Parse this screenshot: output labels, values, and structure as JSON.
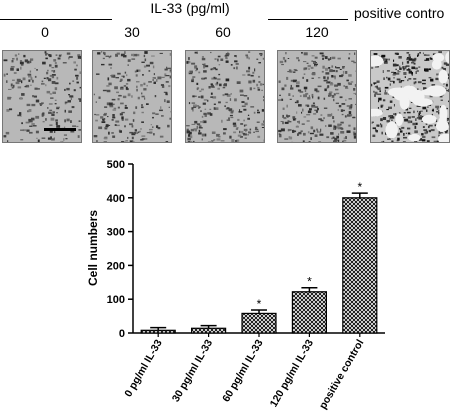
{
  "header": {
    "group_title": "IL-33 (pg/ml)",
    "positive_control_title": "positive contro",
    "concentrations": [
      "0",
      "30",
      "60",
      "120"
    ]
  },
  "micrographs": [
    {
      "label": "0",
      "density": 0.5
    },
    {
      "label": "30",
      "density": 0.55
    },
    {
      "label": "60",
      "density": 0.62
    },
    {
      "label": "120",
      "density": 0.72
    },
    {
      "label": "positive contro",
      "density": 0.85
    }
  ],
  "chart_data": {
    "type": "bar",
    "categories": [
      "0 pg/ml IL-33",
      "30 pg/ml IL-33",
      "60 pg/ml IL-33",
      "120 pg/ml IL-33",
      "positive control"
    ],
    "values": [
      8,
      14,
      58,
      122,
      400
    ],
    "errors": [
      8,
      8,
      10,
      12,
      14
    ],
    "significance": [
      "",
      "",
      "*",
      "*",
      "*"
    ],
    "ylabel": "Cell numbers",
    "xlabel": "",
    "ylim": [
      0,
      500
    ],
    "yticks": [
      0,
      100,
      200,
      300,
      400,
      500
    ],
    "bar_pattern": "crosshatch",
    "grid": false
  }
}
